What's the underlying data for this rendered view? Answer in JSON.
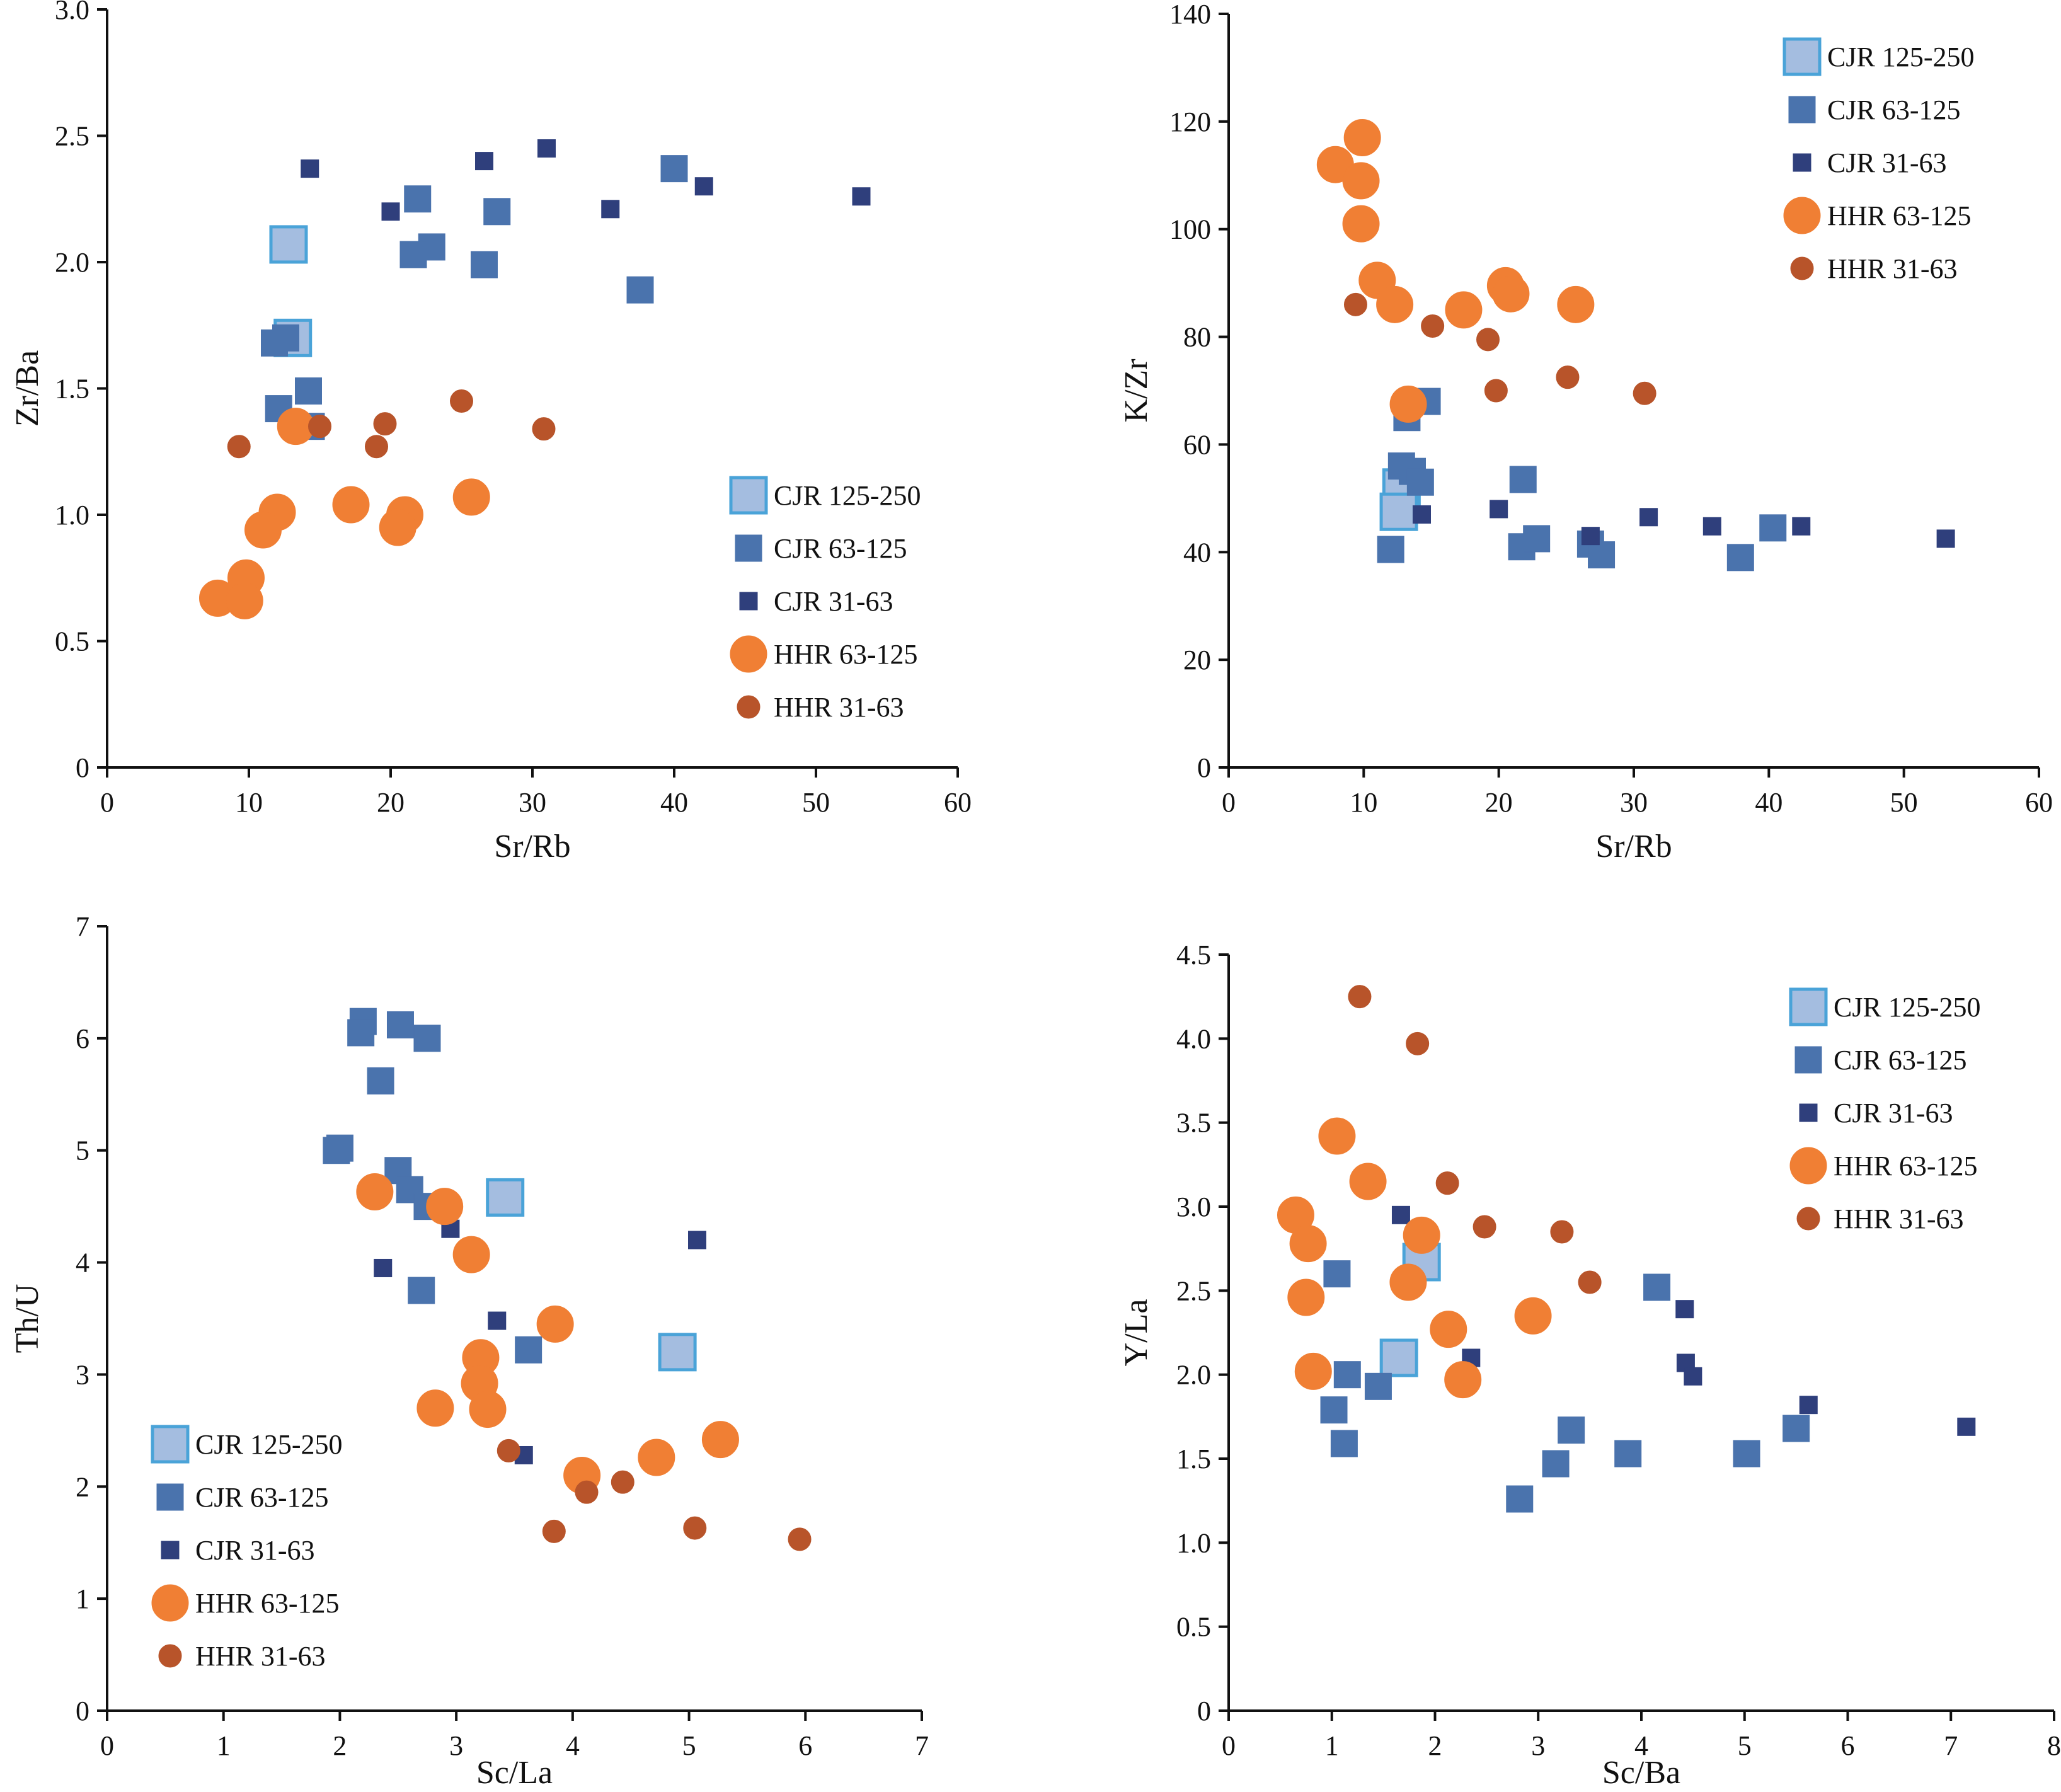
{
  "series_styles": {
    "CJR 125-250": {
      "shape": "square",
      "size": "large",
      "fill": "#a4bde0",
      "stroke": "#4aa3d8"
    },
    "CJR 63-125": {
      "shape": "square",
      "size": "medium",
      "fill": "#4a73ad",
      "stroke": "#4a73ad"
    },
    "CJR 31-63": {
      "shape": "square",
      "size": "small",
      "fill": "#2f3f7c",
      "stroke": "#2f3f7c"
    },
    "HHR 63-125": {
      "shape": "circle",
      "size": "large",
      "fill": "#f07f34",
      "stroke": "#f07f34"
    },
    "HHR 31-63": {
      "shape": "circle",
      "size": "small",
      "fill": "#b8542a",
      "stroke": "#b8542a"
    }
  },
  "chart_data": [
    {
      "id": "zr-ba",
      "type": "scatter",
      "xlabel": "Sr/Rb",
      "ylabel": "Zr/Ba",
      "xlim": [
        0,
        60
      ],
      "ylim": [
        0,
        3.0
      ],
      "xticks": [
        0,
        10,
        20,
        30,
        40,
        50,
        60
      ],
      "yticks": [
        0,
        0.5,
        1.0,
        1.5,
        2.0,
        2.5,
        3.0
      ],
      "xtick_labels": [
        "0",
        "10",
        "20",
        "30",
        "40",
        "50",
        "60"
      ],
      "ytick_labels": [
        "0",
        "0.5",
        "1.0",
        "1.5",
        "2.0",
        "2.5",
        "3.0"
      ],
      "legend_position": "bottom-right",
      "series": [
        {
          "name": "CJR 125-250",
          "points": [
            [
              12.8,
              2.07
            ],
            [
              13.1,
              1.7
            ]
          ]
        },
        {
          "name": "CJR 63-125",
          "points": [
            [
              21.9,
              2.25
            ],
            [
              27.5,
              2.2
            ],
            [
              40.0,
              2.37
            ],
            [
              22.9,
              2.06
            ],
            [
              21.6,
              2.03
            ],
            [
              26.6,
              1.99
            ],
            [
              37.6,
              1.89
            ],
            [
              11.8,
              1.68
            ],
            [
              12.6,
              1.7
            ],
            [
              14.2,
              1.49
            ],
            [
              12.1,
              1.42
            ],
            [
              14.4,
              1.35
            ]
          ]
        },
        {
          "name": "CJR 31-63",
          "points": [
            [
              14.3,
              2.37
            ],
            [
              26.6,
              2.4
            ],
            [
              31.0,
              2.45
            ],
            [
              20.0,
              2.2
            ],
            [
              35.5,
              2.21
            ],
            [
              42.1,
              2.3
            ],
            [
              53.2,
              2.26
            ]
          ]
        },
        {
          "name": "HHR 63-125",
          "points": [
            [
              13.3,
              1.35
            ],
            [
              17.2,
              1.04
            ],
            [
              21.0,
              1.0
            ],
            [
              20.5,
              0.95
            ],
            [
              25.7,
              1.07
            ],
            [
              12.0,
              1.01
            ],
            [
              11.0,
              0.94
            ],
            [
              9.8,
              0.75
            ],
            [
              7.8,
              0.67
            ],
            [
              9.7,
              0.66
            ]
          ]
        },
        {
          "name": "HHR 31-63",
          "points": [
            [
              9.3,
              1.27
            ],
            [
              15.0,
              1.35
            ],
            [
              19.6,
              1.36
            ],
            [
              19.0,
              1.27
            ],
            [
              25.0,
              1.45
            ],
            [
              30.8,
              1.34
            ]
          ]
        }
      ]
    },
    {
      "id": "k-zr",
      "type": "scatter",
      "xlabel": "Sr/Rb",
      "ylabel": "K/Zr",
      "xlim": [
        0,
        60
      ],
      "ylim": [
        0,
        140
      ],
      "xticks": [
        0,
        10,
        20,
        30,
        40,
        50,
        60
      ],
      "yticks": [
        0,
        20,
        40,
        60,
        80,
        100,
        120,
        140
      ],
      "xtick_labels": [
        "0",
        "10",
        "20",
        "30",
        "40",
        "50",
        "60"
      ],
      "ytick_labels": [
        "0",
        "20",
        "40",
        "60",
        "80",
        "100",
        "120",
        "140"
      ],
      "legend_position": "top-right",
      "series": [
        {
          "name": "CJR 125-250",
          "points": [
            [
              12.8,
              52
            ],
            [
              12.6,
              47.5
            ]
          ]
        },
        {
          "name": "CJR 63-125",
          "points": [
            [
              13.2,
              65
            ],
            [
              14.7,
              68
            ],
            [
              12.8,
              56
            ],
            [
              13.6,
              55
            ],
            [
              14.2,
              53
            ],
            [
              21.8,
              53.5
            ],
            [
              12.0,
              40.5
            ],
            [
              21.7,
              41
            ],
            [
              22.8,
              42.5
            ],
            [
              26.8,
              41.5
            ],
            [
              27.6,
              39.5
            ],
            [
              37.9,
              39
            ],
            [
              40.3,
              44.5
            ]
          ]
        },
        {
          "name": "CJR 31-63",
          "points": [
            [
              14.3,
              47
            ],
            [
              20.0,
              48
            ],
            [
              26.8,
              43
            ],
            [
              31.1,
              46.5
            ],
            [
              35.8,
              44.8
            ],
            [
              42.4,
              44.8
            ],
            [
              53.1,
              42.5
            ]
          ]
        },
        {
          "name": "HHR 63-125",
          "points": [
            [
              7.9,
              112
            ],
            [
              9.9,
              117
            ],
            [
              9.8,
              109
            ],
            [
              9.8,
              101
            ],
            [
              11.0,
              90.5
            ],
            [
              12.3,
              86
            ],
            [
              17.4,
              85
            ],
            [
              20.5,
              89.5
            ],
            [
              20.9,
              88
            ],
            [
              25.7,
              86
            ],
            [
              13.3,
              67.5
            ]
          ]
        },
        {
          "name": "HHR 31-63",
          "points": [
            [
              9.4,
              86
            ],
            [
              15.1,
              82
            ],
            [
              19.2,
              79.5
            ],
            [
              19.8,
              70
            ],
            [
              25.1,
              72.5
            ],
            [
              30.8,
              69.5
            ]
          ]
        }
      ]
    },
    {
      "id": "th-u",
      "type": "scatter",
      "xlabel": "Sc/La",
      "ylabel": "Th/U",
      "xlim": [
        0,
        7
      ],
      "ylim": [
        0,
        7
      ],
      "xticks": [
        0,
        1,
        2,
        3,
        4,
        5,
        6,
        7
      ],
      "yticks": [
        0,
        1,
        2,
        3,
        4,
        5,
        6,
        7
      ],
      "xtick_labels": [
        "0",
        "1",
        "2",
        "3",
        "4",
        "5",
        "6",
        "7"
      ],
      "ytick_labels": [
        "0",
        "1",
        "2",
        "3",
        "4",
        "5",
        "6",
        "7"
      ],
      "legend_position": "bottom-left",
      "series": [
        {
          "name": "CJR 125-250",
          "points": [
            [
              3.42,
              4.58
            ],
            [
              4.9,
              3.2
            ]
          ]
        },
        {
          "name": "CJR 63-125",
          "points": [
            [
              2.2,
              6.15
            ],
            [
              2.18,
              6.05
            ],
            [
              2.52,
              6.12
            ],
            [
              2.75,
              6.0
            ],
            [
              2.35,
              5.62
            ],
            [
              2.0,
              5.02
            ],
            [
              1.97,
              5.0
            ],
            [
              2.5,
              4.82
            ],
            [
              2.6,
              4.65
            ],
            [
              2.75,
              4.5
            ],
            [
              2.7,
              3.75
            ],
            [
              3.62,
              3.22
            ]
          ]
        },
        {
          "name": "CJR 31-63",
          "points": [
            [
              2.37,
              3.95
            ],
            [
              2.95,
              4.3
            ],
            [
              3.35,
              3.48
            ],
            [
              3.58,
              2.28
            ],
            [
              5.07,
              4.2
            ]
          ]
        },
        {
          "name": "HHR 63-125",
          "points": [
            [
              2.3,
              4.63
            ],
            [
              2.9,
              4.5
            ],
            [
              3.13,
              4.07
            ],
            [
              3.21,
              3.15
            ],
            [
              3.2,
              2.92
            ],
            [
              3.27,
              2.69
            ],
            [
              2.82,
              2.7
            ],
            [
              3.85,
              3.45
            ],
            [
              4.08,
              2.1
            ],
            [
              4.72,
              2.26
            ],
            [
              5.27,
              2.42
            ]
          ]
        },
        {
          "name": "HHR 31-63",
          "points": [
            [
              3.45,
              2.32
            ],
            [
              4.12,
              1.95
            ],
            [
              4.43,
              2.04
            ],
            [
              3.84,
              1.6
            ],
            [
              5.05,
              1.63
            ],
            [
              5.95,
              1.53
            ]
          ]
        }
      ]
    },
    {
      "id": "y-la",
      "type": "scatter",
      "xlabel": "Sc/Ba",
      "ylabel": "Y/La",
      "xlim": [
        0,
        8
      ],
      "ylim": [
        0,
        4.5
      ],
      "xticks": [
        0,
        1,
        2,
        3,
        4,
        5,
        6,
        7,
        8
      ],
      "yticks": [
        0,
        0.5,
        1.0,
        1.5,
        2.0,
        2.5,
        3.0,
        3.5,
        4.0,
        4.5
      ],
      "xtick_labels": [
        "0",
        "1",
        "2",
        "3",
        "4",
        "5",
        "6",
        "7",
        "8"
      ],
      "ytick_labels": [
        "0",
        "0.5",
        "1.0",
        "1.5",
        "2.0",
        "2.5",
        "3.0",
        "3.5",
        "4.0",
        "4.5"
      ],
      "legend_position": "top-right",
      "series": [
        {
          "name": "CJR 125-250",
          "points": [
            [
              1.65,
              2.1
            ],
            [
              1.87,
              2.67
            ]
          ]
        },
        {
          "name": "CJR 63-125",
          "points": [
            [
              1.05,
              2.6
            ],
            [
              1.15,
              2.0
            ],
            [
              1.45,
              1.93
            ],
            [
              1.02,
              1.79
            ],
            [
              1.12,
              1.59
            ],
            [
              2.82,
              1.26
            ],
            [
              3.17,
              1.47
            ],
            [
              3.32,
              1.67
            ],
            [
              3.87,
              1.53
            ],
            [
              5.02,
              1.53
            ],
            [
              5.5,
              1.68
            ],
            [
              4.15,
              2.52
            ]
          ]
        },
        {
          "name": "CJR 31-63",
          "points": [
            [
              1.67,
              2.95
            ],
            [
              2.35,
              2.1
            ],
            [
              4.42,
              2.39
            ],
            [
              4.43,
              2.07
            ],
            [
              4.5,
              1.99
            ],
            [
              5.62,
              1.82
            ],
            [
              7.15,
              1.69
            ]
          ]
        },
        {
          "name": "HHR 63-125",
          "points": [
            [
              1.05,
              3.42
            ],
            [
              1.35,
              3.15
            ],
            [
              0.65,
              2.95
            ],
            [
              0.77,
              2.78
            ],
            [
              1.87,
              2.83
            ],
            [
              0.75,
              2.46
            ],
            [
              1.74,
              2.55
            ],
            [
              2.13,
              2.27
            ],
            [
              2.95,
              2.35
            ],
            [
              0.82,
              2.02
            ],
            [
              2.27,
              1.97
            ]
          ]
        },
        {
          "name": "HHR 31-63",
          "points": [
            [
              1.27,
              4.25
            ],
            [
              1.83,
              3.97
            ],
            [
              2.12,
              3.14
            ],
            [
              2.48,
              2.88
            ],
            [
              3.23,
              2.85
            ],
            [
              3.5,
              2.55
            ]
          ]
        }
      ]
    }
  ]
}
